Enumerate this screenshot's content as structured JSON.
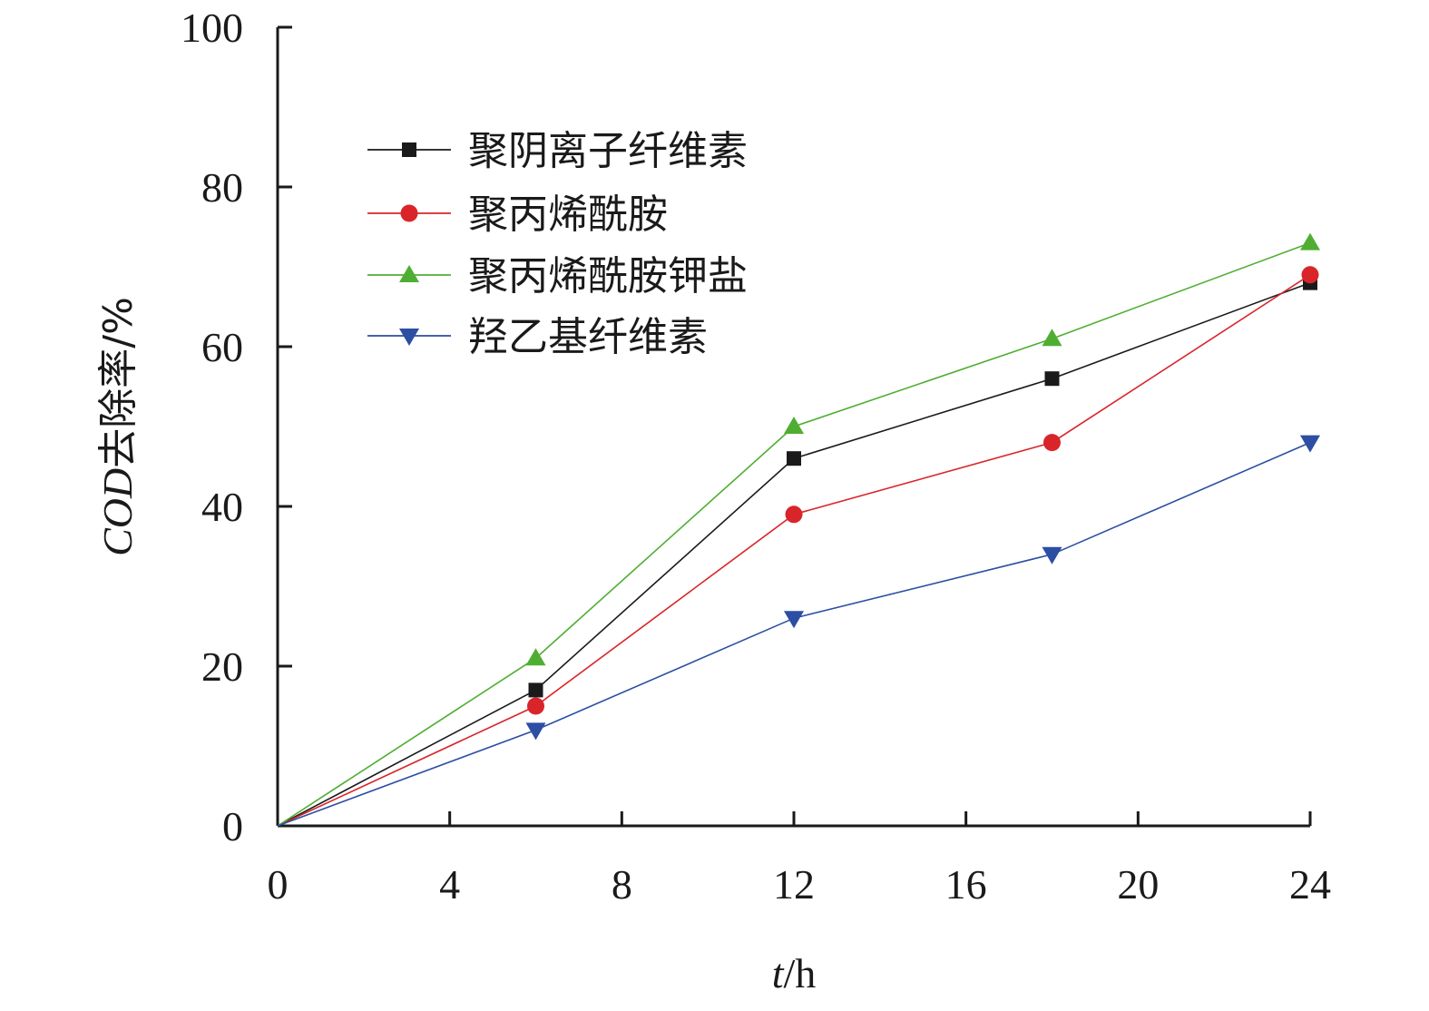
{
  "chart_data": {
    "type": "line",
    "xlabel_italic": "t",
    "xlabel_rest": "/h",
    "ylabel_italic": "COD",
    "ylabel_rest": "去除率/%",
    "xlim": [
      0,
      24
    ],
    "ylim": [
      0,
      100
    ],
    "xticks": [
      0,
      4,
      8,
      12,
      16,
      20,
      24
    ],
    "yticks": [
      0,
      20,
      40,
      60,
      80,
      100
    ],
    "grid": false,
    "legend_position": "top-left",
    "x": [
      0,
      6,
      12,
      18,
      24
    ],
    "series": [
      {
        "name": "聚阴离子纤维素",
        "values": [
          0,
          17,
          46,
          56,
          68
        ],
        "color": "#1a1a1a",
        "marker": "square"
      },
      {
        "name": "聚丙烯酰胺",
        "values": [
          0,
          15,
          39,
          48,
          69
        ],
        "color": "#d9252a",
        "marker": "circle"
      },
      {
        "name": "聚丙烯酰胺钾盐",
        "values": [
          0,
          21,
          50,
          61,
          73
        ],
        "color": "#4fae32",
        "marker": "triangle-up"
      },
      {
        "name": "羟乙基纤维素",
        "values": [
          0,
          12,
          26,
          34,
          48
        ],
        "color": "#2c4ea3",
        "marker": "triangle-down"
      }
    ]
  }
}
